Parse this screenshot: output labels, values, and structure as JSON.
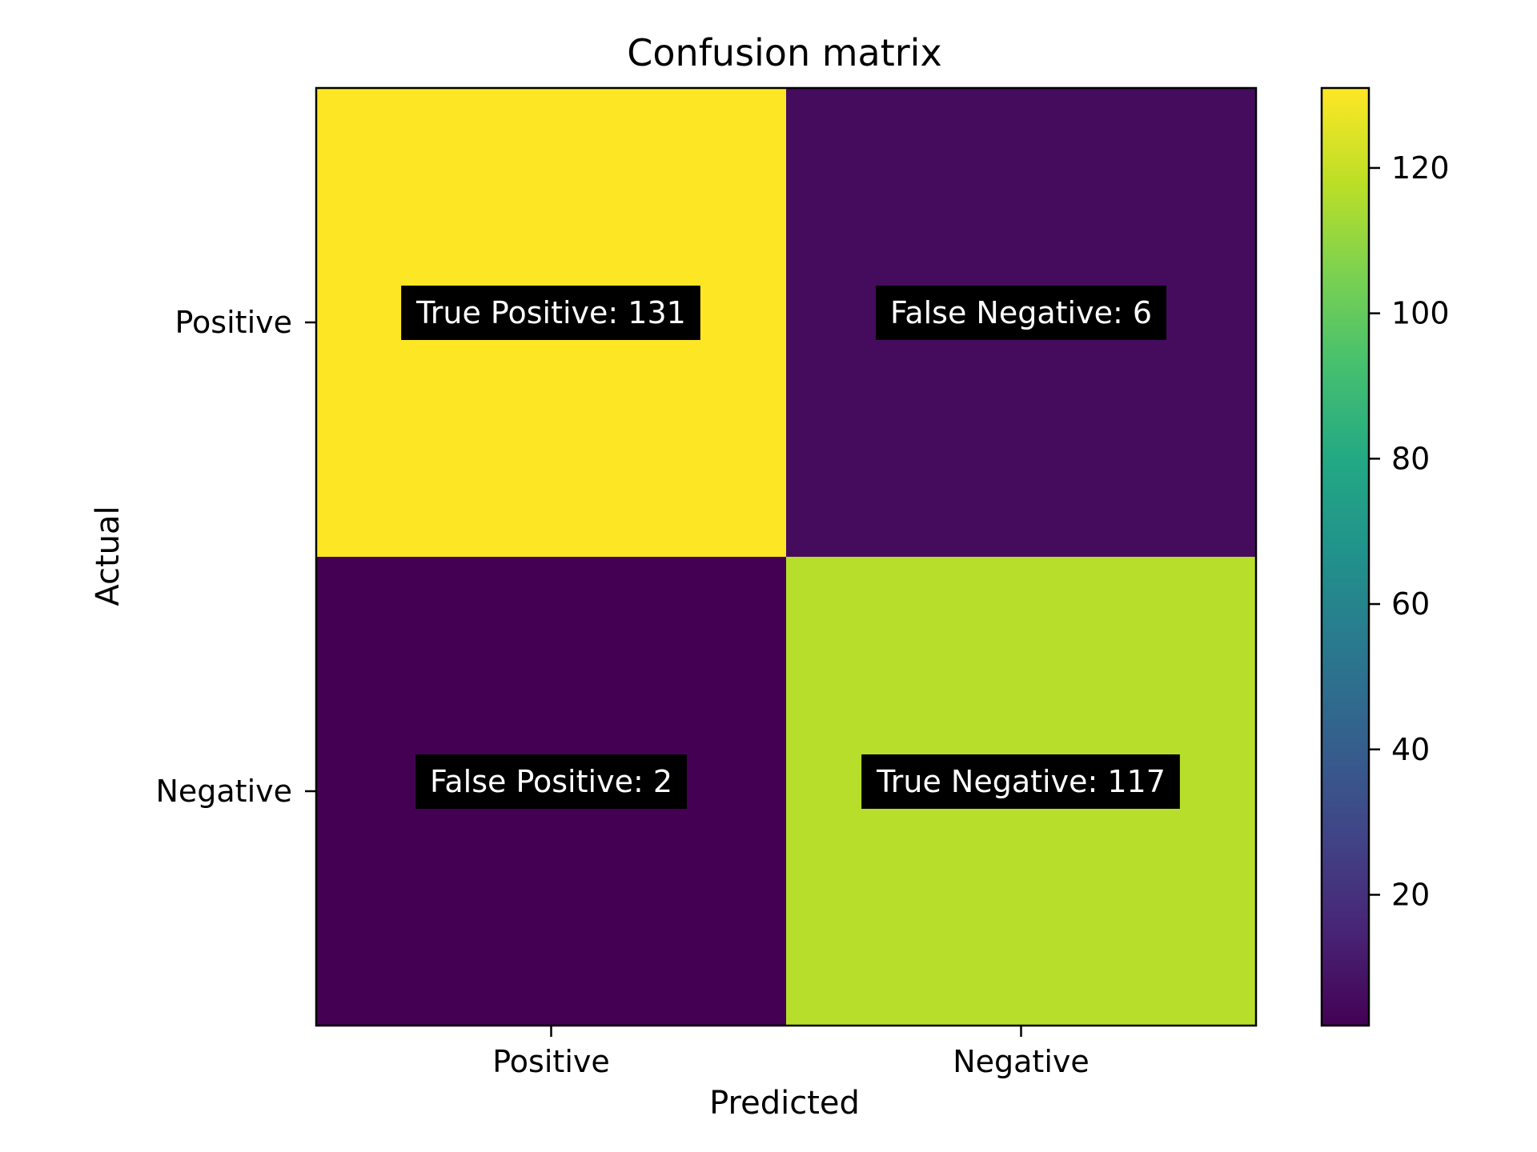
{
  "chart_data": {
    "type": "heatmap",
    "title": "Confusion matrix",
    "xlabel": "Predicted",
    "ylabel": "Actual",
    "x_categories": [
      "Positive",
      "Negative"
    ],
    "y_categories": [
      "Positive",
      "Negative"
    ],
    "values": [
      [
        131,
        6
      ],
      [
        2,
        117
      ]
    ],
    "cell_labels": [
      [
        "True Positive: 131",
        "False Negative: 6"
      ],
      [
        "False Positive: 2",
        "True Negative: 117"
      ]
    ],
    "colormap": "viridis",
    "colorbar": {
      "min": 2,
      "max": 131,
      "ticks": [
        20,
        40,
        60,
        80,
        100,
        120
      ]
    },
    "label_box_color": "#000000",
    "label_text_color": "#ffffff"
  }
}
